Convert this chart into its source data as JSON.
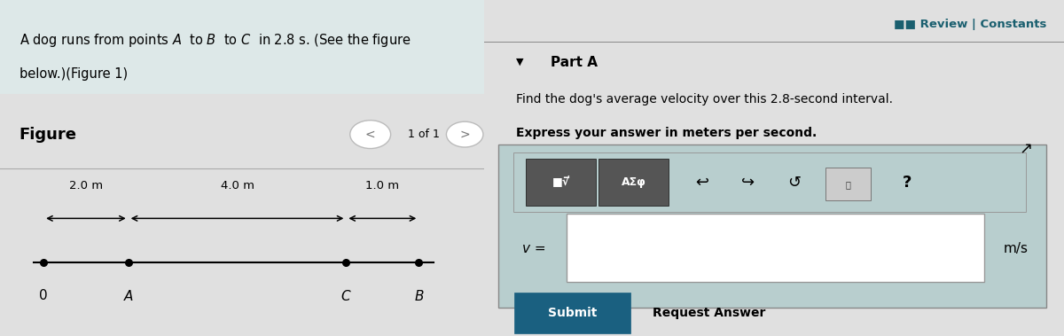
{
  "bg_color_left": "#e0e0e0",
  "bg_color_header": "#dde8e8",
  "bg_color_right": "#b8cece",
  "review_text": "■■ Review | Constants",
  "header_line1": "A dog runs from points $A$  to $B$  to $C$  in 2.8 s. (See the figure",
  "header_line2": "below.)(Figure 1)",
  "figure_label": "Figure",
  "nav_text": "1 of 1",
  "part_a_label": "Part A",
  "question_line1": "Find the dog's average velocity over this 2.8-second interval.",
  "question_line2": "Express your answer in meters per second.",
  "v_label": "v =",
  "unit_label": "m/s",
  "submit_text": "Submit",
  "request_answer_text": "Request Answer",
  "dim_2m": "2.0 m",
  "dim_4m": "4.0 m",
  "dim_1m": "1.0 m",
  "dot_color": "#000000",
  "submit_bg": "#1a6080",
  "submit_fg": "#ffffff",
  "input_bg": "#ffffff",
  "toolbar_bg": "#555555",
  "review_color": "#1a5f6f"
}
